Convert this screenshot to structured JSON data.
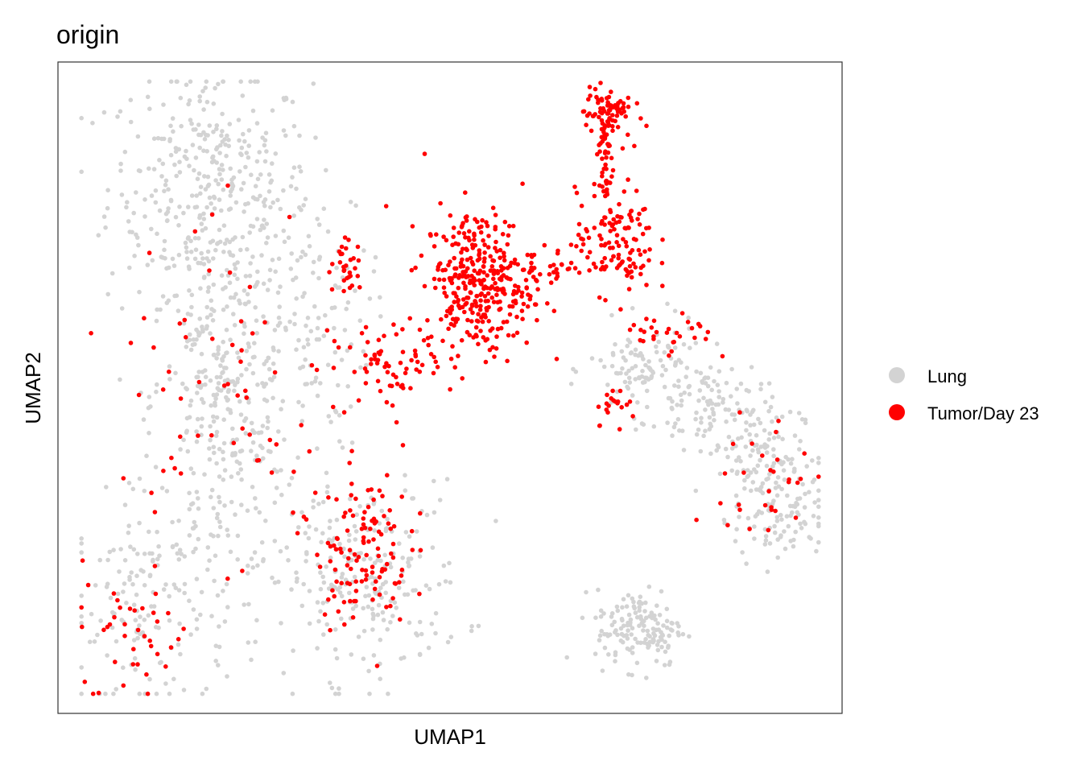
{
  "chart_data": {
    "type": "scatter",
    "title": "origin",
    "xlabel": "UMAP1",
    "ylabel": "UMAP2",
    "xlim": [
      0,
      100
    ],
    "ylim": [
      0,
      100
    ],
    "grid": false,
    "axis_ticks": false,
    "legend_placement": "right",
    "legend": [
      {
        "name": "Lung",
        "color": "#D3D3D3"
      },
      {
        "name": "Tumor/Day 23",
        "color": "#FF0000"
      }
    ],
    "clusters": [
      {
        "group": "Lung",
        "cx": 19.3,
        "cy": 81,
        "sx": 6.5,
        "sy": 9,
        "n": 350
      },
      {
        "group": "Lung",
        "cx": 21,
        "cy": 48,
        "sx": 4.5,
        "sy": 14,
        "n": 350
      },
      {
        "group": "Lung",
        "cx": 31.6,
        "cy": 60,
        "sx": 4,
        "sy": 10,
        "n": 120
      },
      {
        "group": "Lung",
        "cx": 38.8,
        "cy": 20.5,
        "sx": 6.5,
        "sy": 7.5,
        "n": 250
      },
      {
        "group": "Lung",
        "cx": 11.6,
        "cy": 16.8,
        "sx": 5,
        "sy": 8,
        "n": 150
      },
      {
        "group": "Lung",
        "cx": 74.7,
        "cy": 52.7,
        "sx": 3.5,
        "sy": 3.5,
        "n": 100
      },
      {
        "group": "Lung",
        "cx": 83,
        "cy": 47.7,
        "sx": 3.5,
        "sy": 3.5,
        "n": 100
      },
      {
        "group": "Lung",
        "cx": 89,
        "cy": 40.3,
        "sx": 3,
        "sy": 4,
        "n": 100
      },
      {
        "group": "Lung",
        "cx": 92.2,
        "cy": 30.4,
        "sx": 3,
        "sy": 4,
        "n": 100
      },
      {
        "group": "Lung",
        "cx": 74.2,
        "cy": 13.1,
        "sx": 2.8,
        "sy": 3,
        "n": 150
      },
      {
        "group": "Tumor/Day 23",
        "cx": 53.7,
        "cy": 66.3,
        "sx": 3.5,
        "sy": 5.5,
        "n": 350
      },
      {
        "group": "Tumor/Day 23",
        "cx": 70.1,
        "cy": 92.2,
        "sx": 1.5,
        "sy": 2,
        "n": 80
      },
      {
        "group": "Tumor/Day 23",
        "cx": 69.6,
        "cy": 84.8,
        "sx": 0.6,
        "sy": 4,
        "n": 40
      },
      {
        "group": "Tumor/Day 23",
        "cx": 71.1,
        "cy": 72.4,
        "sx": 2.5,
        "sy": 4,
        "n": 120
      },
      {
        "group": "Tumor/Day 23",
        "cx": 63.4,
        "cy": 68.7,
        "sx": 2,
        "sy": 1.5,
        "n": 25
      },
      {
        "group": "Tumor/Day 23",
        "cx": 36.8,
        "cy": 68.7,
        "sx": 1,
        "sy": 2,
        "n": 30
      },
      {
        "group": "Tumor/Day 23",
        "cx": 42.9,
        "cy": 53.9,
        "sx": 3,
        "sy": 3,
        "n": 60
      },
      {
        "group": "Tumor/Day 23",
        "cx": 38.8,
        "cy": 25.5,
        "sx": 3,
        "sy": 6,
        "n": 120
      },
      {
        "group": "Tumor/Day 23",
        "cx": 23.4,
        "cy": 50,
        "sx": 8,
        "sy": 15,
        "n": 70
      },
      {
        "group": "Tumor/Day 23",
        "cx": 9,
        "cy": 13,
        "sx": 4,
        "sy": 5,
        "n": 40
      },
      {
        "group": "Tumor/Day 23",
        "cx": 77.8,
        "cy": 57.6,
        "sx": 3,
        "sy": 2,
        "n": 30
      },
      {
        "group": "Tumor/Day 23",
        "cx": 90,
        "cy": 35,
        "sx": 3,
        "sy": 6,
        "n": 30
      },
      {
        "group": "Tumor/Day 23",
        "cx": 71.1,
        "cy": 47.7,
        "sx": 1.5,
        "sy": 1.5,
        "n": 20
      }
    ]
  }
}
